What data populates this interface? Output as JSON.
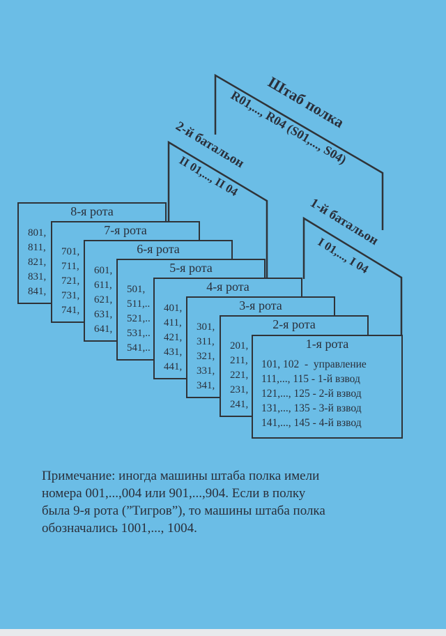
{
  "colors": {
    "background": "#6bbde6",
    "ink": "#2f3338"
  },
  "regiment_hq": {
    "title": "Штаб полка",
    "numbers": "R01,..., R04 (S01,..., S04)"
  },
  "battalion_2": {
    "title": "2-й батальон",
    "numbers": "II 01,..., II 04"
  },
  "battalion_1": {
    "title": "1-й батальон",
    "numbers": "I 01,..., I 04"
  },
  "companies": [
    {
      "title": "8-я рота",
      "rows": [
        "801,",
        "811,",
        "821,",
        "831,",
        "841,"
      ]
    },
    {
      "title": "7-я рота",
      "rows": [
        "701,",
        "711,",
        "721,",
        "731,",
        "741,"
      ]
    },
    {
      "title": "6-я рота",
      "rows": [
        "601,",
        "611,",
        "621,",
        "631,",
        "641,"
      ]
    },
    {
      "title": "5-я рота",
      "rows": [
        "501,",
        "511,..",
        "521,..",
        "531,..",
        "541,.."
      ]
    },
    {
      "title": "4-я рота",
      "rows": [
        "401,",
        "411,",
        "421,",
        "431,",
        "441,"
      ]
    },
    {
      "title": "3-я рота",
      "rows": [
        "301,",
        "311,",
        "321,",
        "331,",
        "341,"
      ]
    },
    {
      "title": "2-я рота",
      "rows": [
        "201,",
        "211,",
        "221,",
        "231,",
        "241,"
      ]
    },
    {
      "title": "1-я рота",
      "rows": [
        "101, 102  -  управление",
        "111,..., 115 - 1-й взвод",
        "121,..., 125 - 2-й взвод",
        "131,..., 135 - 3-й взвод",
        "141,..., 145 - 4-й взвод"
      ]
    }
  ],
  "note": {
    "lines": [
      "Примечание: иногда машины штаба полка имели",
      "номера 001,...,004 или 901,...,904. Если в полку",
      "была 9-я рота (”Тигров”), то машины штаба полка",
      "обозначались 1001,..., 1004."
    ]
  }
}
